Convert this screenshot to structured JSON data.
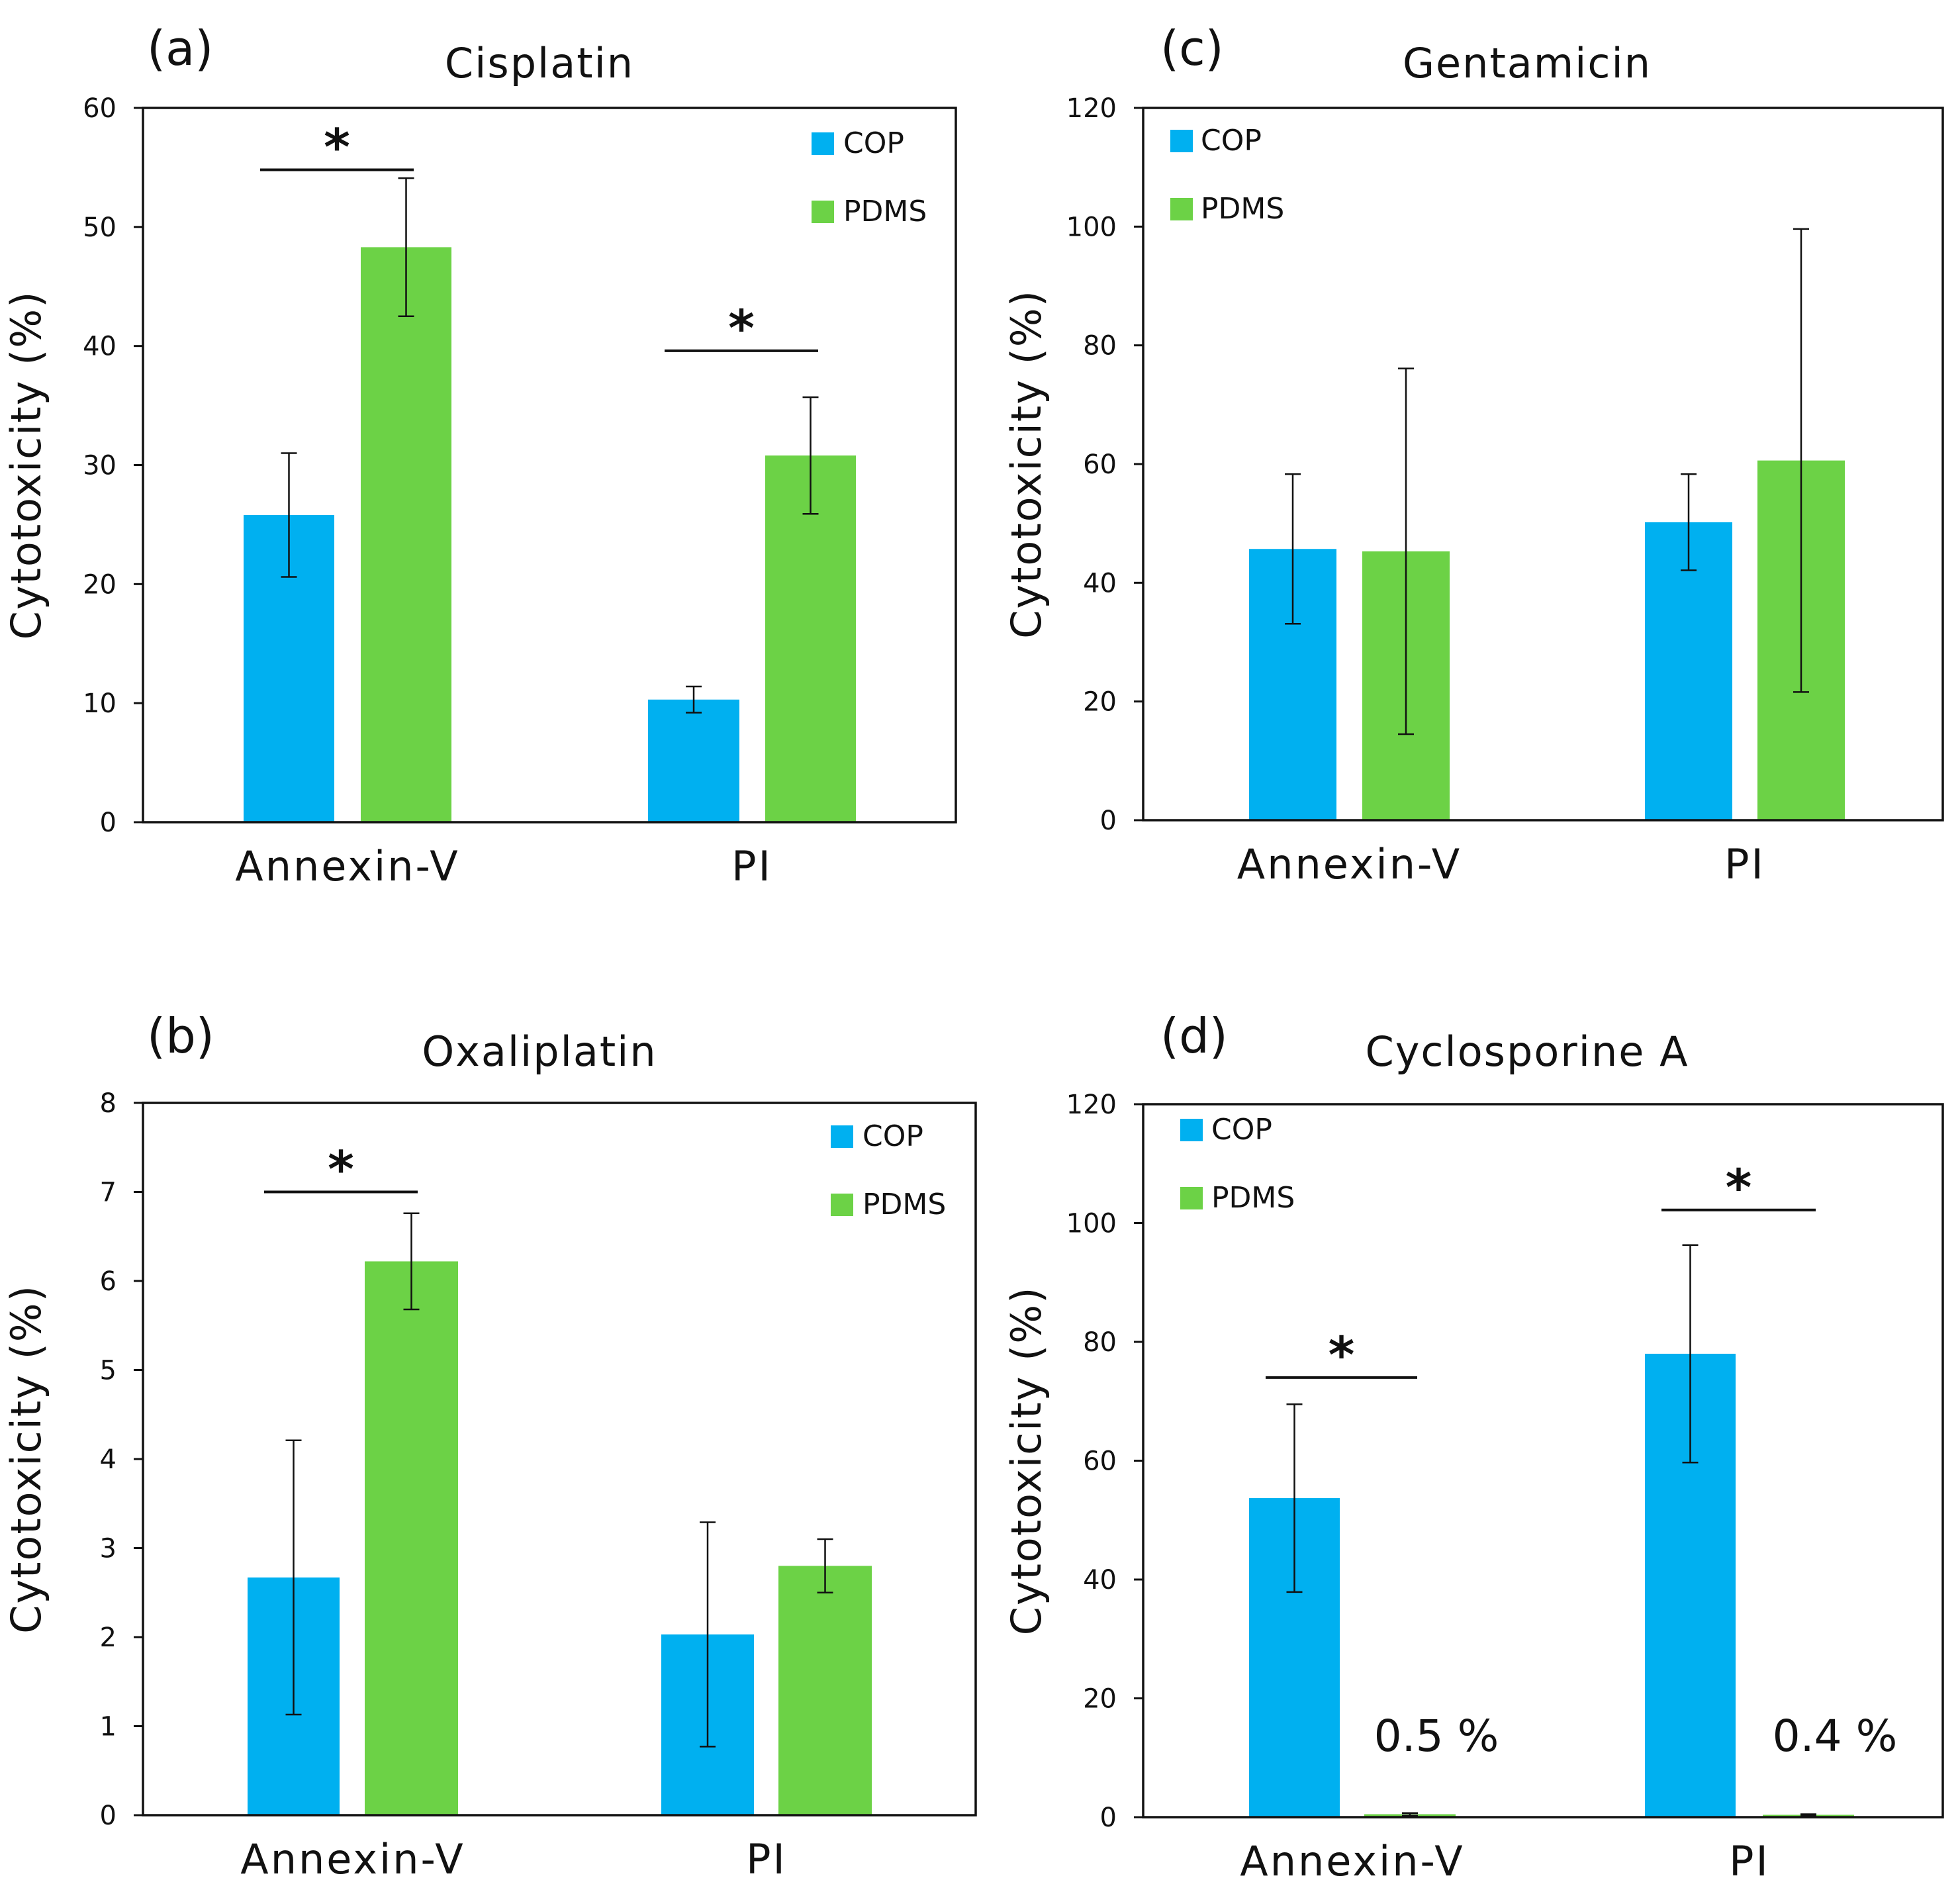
{
  "legend": {
    "series": [
      "COP",
      "PDMS"
    ]
  },
  "colors": {
    "COP": "#00b0f0",
    "PDMS": "#6cd246",
    "axis": "#111111",
    "error": "#111111"
  },
  "chart_data": [
    {
      "type": "bar",
      "panel_label": "(a)",
      "title": "Cisplatin",
      "ylabel": "Cytotoxicity (%)",
      "xlabel": "",
      "categories": [
        "Annexin-V",
        "PI"
      ],
      "ylim": [
        0,
        60
      ],
      "yticks": [
        0,
        10,
        20,
        30,
        40,
        50,
        60
      ],
      "legend_position": "top-right",
      "series": [
        {
          "name": "COP",
          "values": [
            25.8,
            10.3
          ],
          "errors": [
            5.2,
            1.1
          ]
        },
        {
          "name": "PDMS",
          "values": [
            48.3,
            30.8
          ],
          "errors": [
            5.8,
            4.9
          ]
        }
      ],
      "significance": [
        {
          "category": 0,
          "y": 54.8,
          "label": "*"
        },
        {
          "category": 1,
          "y": 39.6,
          "label": "*"
        }
      ],
      "annotations": []
    },
    {
      "type": "bar",
      "panel_label": "(b)",
      "title": "Oxaliplatin",
      "ylabel": "Cytotoxicity (%)",
      "xlabel": "",
      "categories": [
        "Annexin-V",
        "PI"
      ],
      "ylim": [
        0,
        8
      ],
      "yticks": [
        0,
        1,
        2,
        3,
        4,
        5,
        6,
        7,
        8
      ],
      "legend_position": "top-right",
      "series": [
        {
          "name": "COP",
          "values": [
            2.67,
            2.03
          ],
          "errors": [
            1.54,
            1.26
          ]
        },
        {
          "name": "PDMS",
          "values": [
            6.22,
            2.8
          ],
          "errors": [
            0.54,
            0.3
          ]
        }
      ],
      "significance": [
        {
          "category": 0,
          "y": 7.0,
          "label": "*"
        }
      ],
      "annotations": []
    },
    {
      "type": "bar",
      "panel_label": "(c)",
      "title": "Gentamicin",
      "ylabel": "Cytotoxicity (%)",
      "xlabel": "",
      "categories": [
        "Annexin-V",
        "PI"
      ],
      "ylim": [
        0,
        120
      ],
      "yticks": [
        0,
        20,
        40,
        60,
        80,
        100,
        120
      ],
      "legend_position": "top-left",
      "series": [
        {
          "name": "COP",
          "values": [
            45.7,
            50.2
          ],
          "errors": [
            12.6,
            8.1
          ]
        },
        {
          "name": "PDMS",
          "values": [
            45.3,
            60.6
          ],
          "errors": [
            30.8,
            39.0
          ]
        }
      ],
      "significance": [],
      "annotations": []
    },
    {
      "type": "bar",
      "panel_label": "(d)",
      "title": "Cyclosporine A",
      "ylabel": "Cytotoxicity (%)",
      "xlabel": "",
      "categories": [
        "Annexin-V",
        "PI"
      ],
      "ylim": [
        0,
        120
      ],
      "yticks": [
        0,
        20,
        40,
        60,
        80,
        100,
        120
      ],
      "legend_position": "top-left",
      "series": [
        {
          "name": "COP",
          "values": [
            53.7,
            78.0
          ],
          "errors": [
            15.8,
            18.3
          ]
        },
        {
          "name": "PDMS",
          "values": [
            0.5,
            0.4
          ],
          "errors": [
            0.2,
            0.1
          ]
        }
      ],
      "significance": [
        {
          "category": 0,
          "y": 74.0,
          "label": "*"
        },
        {
          "category": 1,
          "y": 102.2,
          "label": "*"
        }
      ],
      "annotations": [
        {
          "category": 0,
          "text": "0.5 %"
        },
        {
          "category": 1,
          "text": "0.4 %"
        }
      ]
    }
  ]
}
